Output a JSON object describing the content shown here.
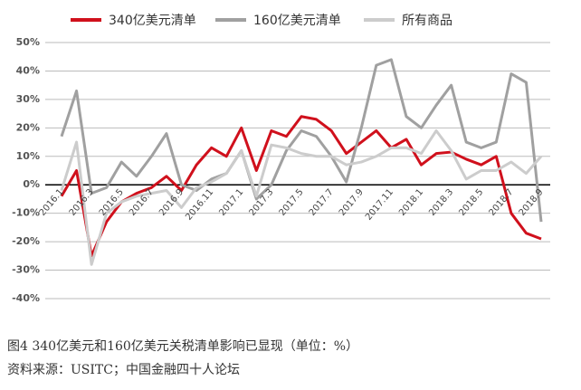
{
  "chart_data": {
    "type": "line",
    "categories": [
      "2016.1",
      null,
      "2016.3",
      null,
      "2016.5",
      null,
      "2016.7",
      null,
      "2016.9",
      null,
      "2016.11",
      null,
      "2017.1",
      null,
      "2017.3",
      null,
      "2017.5",
      null,
      "2017.7",
      null,
      "2017.9",
      null,
      "2017.11",
      null,
      "2018.1",
      null,
      "2018.3",
      null,
      "2018.5",
      null,
      "2018.7",
      null,
      "2018.9"
    ],
    "series": [
      {
        "name": "340亿美元清单",
        "color": "#d0101c",
        "values": [
          -4,
          5,
          -25,
          -13,
          -6,
          -3,
          -1,
          3,
          -2,
          7,
          13,
          10,
          20,
          5,
          19,
          17,
          24,
          23,
          19,
          11,
          15,
          19,
          13,
          16,
          7,
          11,
          11.5,
          9,
          7,
          10,
          -10,
          -17,
          -19
        ]
      },
      {
        "name": "160亿美元清单",
        "color": "#a0a0a0",
        "values": [
          17,
          33,
          -3,
          -1,
          8,
          3,
          10,
          18,
          0,
          -2,
          2,
          4,
          12,
          -5,
          0,
          12,
          19,
          17,
          10,
          1,
          20,
          42,
          44,
          24,
          20,
          28,
          35,
          15,
          13,
          15,
          39,
          36,
          -13
        ]
      },
      {
        "name": "所有商品",
        "color": "#cccccc",
        "values": [
          -2,
          15,
          -28,
          -10,
          -6,
          -4,
          -3,
          -2,
          -8,
          -1,
          1,
          4,
          12,
          -4,
          14,
          13,
          11,
          10,
          10,
          7,
          8,
          10,
          13,
          13,
          11,
          19,
          12,
          2,
          5,
          5,
          8,
          4,
          10
        ]
      }
    ],
    "ylim": [
      -40,
      50
    ],
    "yticks": [
      {
        "value": -40,
        "label": "-40%"
      },
      {
        "value": -30,
        "label": "-30%"
      },
      {
        "value": -20,
        "label": "-20%"
      },
      {
        "value": -10,
        "label": "-10%"
      },
      {
        "value": 0,
        "label": "0%"
      },
      {
        "value": 10,
        "label": "10%"
      },
      {
        "value": 20,
        "label": "20%"
      },
      {
        "value": 30,
        "label": "30%"
      },
      {
        "value": 40,
        "label": "40%"
      },
      {
        "value": 50,
        "label": "50%"
      }
    ],
    "grid": true,
    "legend": "top",
    "caption": "图4   340亿美元和160亿美元关税清单影响已显现（单位：%）",
    "source": "资料来源：USITC；中国金融四十人论坛"
  }
}
